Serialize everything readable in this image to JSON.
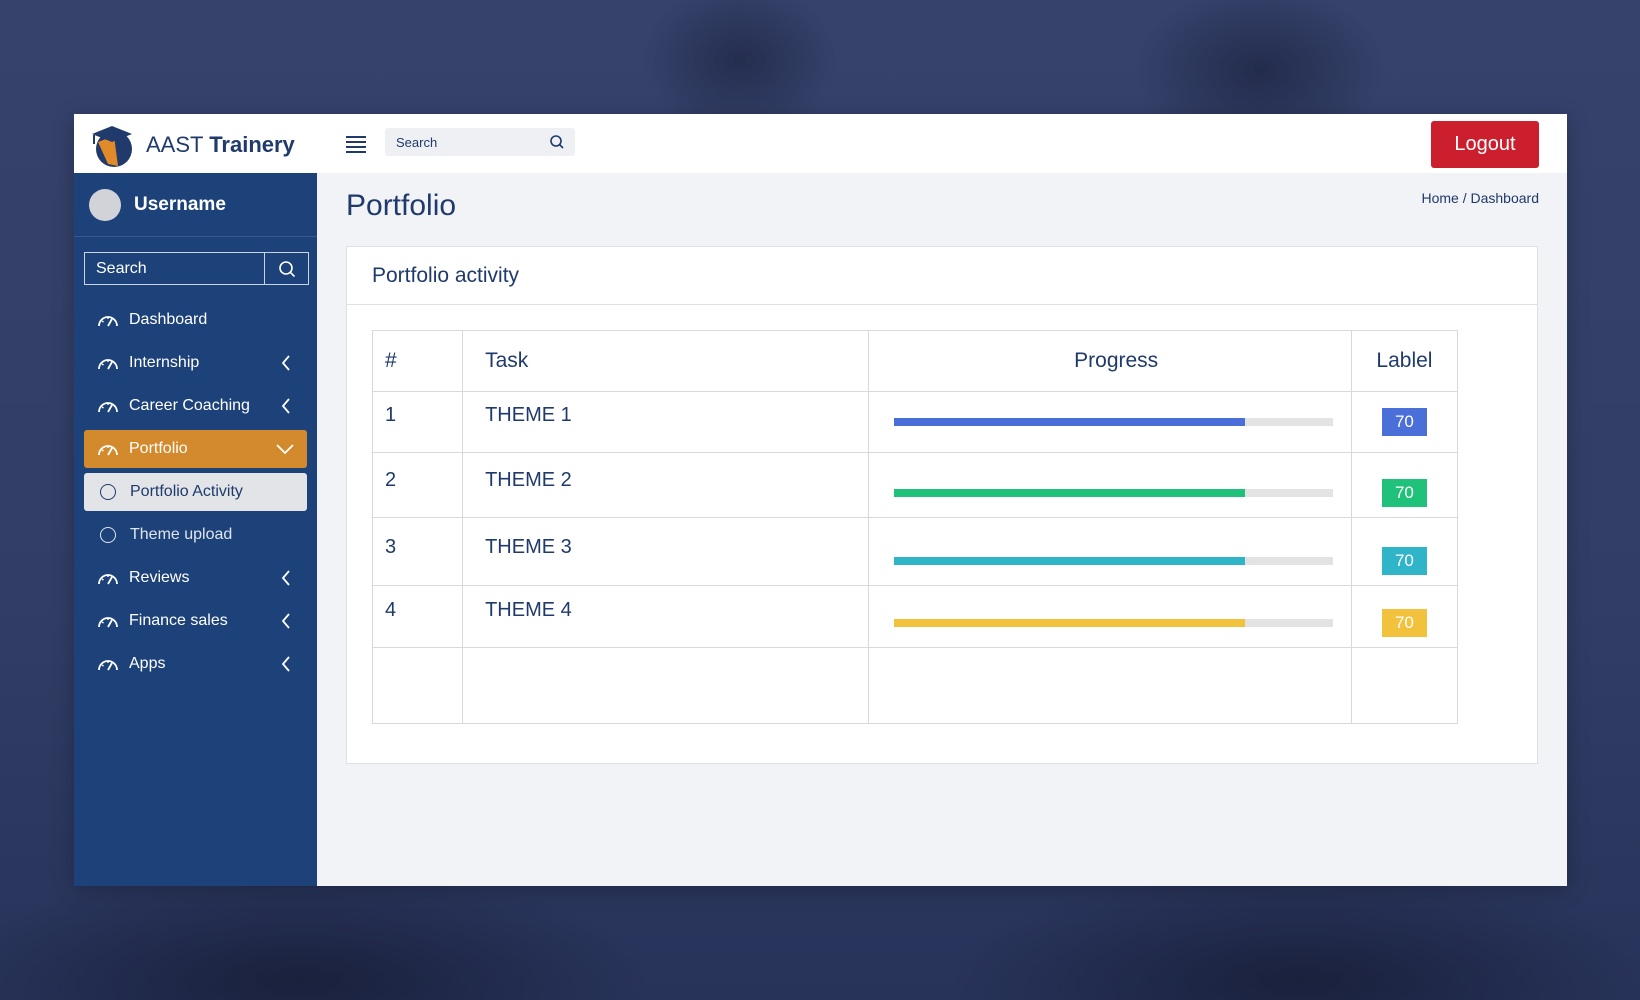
{
  "brand": {
    "name_light": "AAST",
    "name_bold": "Trainery"
  },
  "header": {
    "search_placeholder": "Search",
    "logout_label": "Logout"
  },
  "sidebar": {
    "username": "Username",
    "search_placeholder": "Search",
    "items": [
      {
        "label": "Dashboard"
      },
      {
        "label": "Internship"
      },
      {
        "label": "Career Coaching"
      },
      {
        "label": "Portfolio"
      },
      {
        "label": "Portfolio Activity"
      },
      {
        "label": "Theme upload"
      },
      {
        "label": "Reviews"
      },
      {
        "label": "Finance sales"
      },
      {
        "label": "Apps"
      }
    ]
  },
  "page": {
    "title": "Portfolio",
    "breadcrumb": "Home / Dashboard",
    "card_title": "Portfolio activity"
  },
  "table": {
    "headers": [
      "#",
      "Task",
      "Progress",
      "Lablel"
    ],
    "rows": [
      {
        "num": "1",
        "task": "THEME 1",
        "progress": 0.8,
        "label": "70",
        "color": "#4a6fd8"
      },
      {
        "num": "2",
        "task": "THEME 2",
        "progress": 0.8,
        "label": "70",
        "color": "#1fc17b"
      },
      {
        "num": "3",
        "task": "THEME 3",
        "progress": 0.8,
        "label": "70",
        "color": "#2fb4c8"
      },
      {
        "num": "4",
        "task": "THEME 4",
        "progress": 0.8,
        "label": "70",
        "color": "#f2c23c"
      }
    ]
  },
  "colors": {
    "sidebar_bg": "#1d4279",
    "active_item": "#d28a2d",
    "logout": "#cc1f2e",
    "text": "#1f3a6b"
  }
}
